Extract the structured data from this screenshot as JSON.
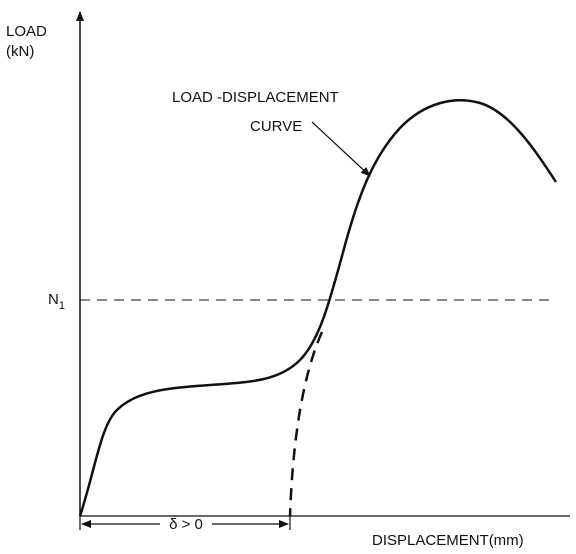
{
  "y_axis": {
    "label": "LOAD",
    "unit": "(kN)"
  },
  "x_axis": {
    "label": "DISPLACEMENT(mm)"
  },
  "level": {
    "label": "N",
    "subscript": "1"
  },
  "curve_label": {
    "line1": "LOAD -DISPLACEMENT",
    "line2": "CURVE"
  },
  "offset_label": "δ > 0"
}
